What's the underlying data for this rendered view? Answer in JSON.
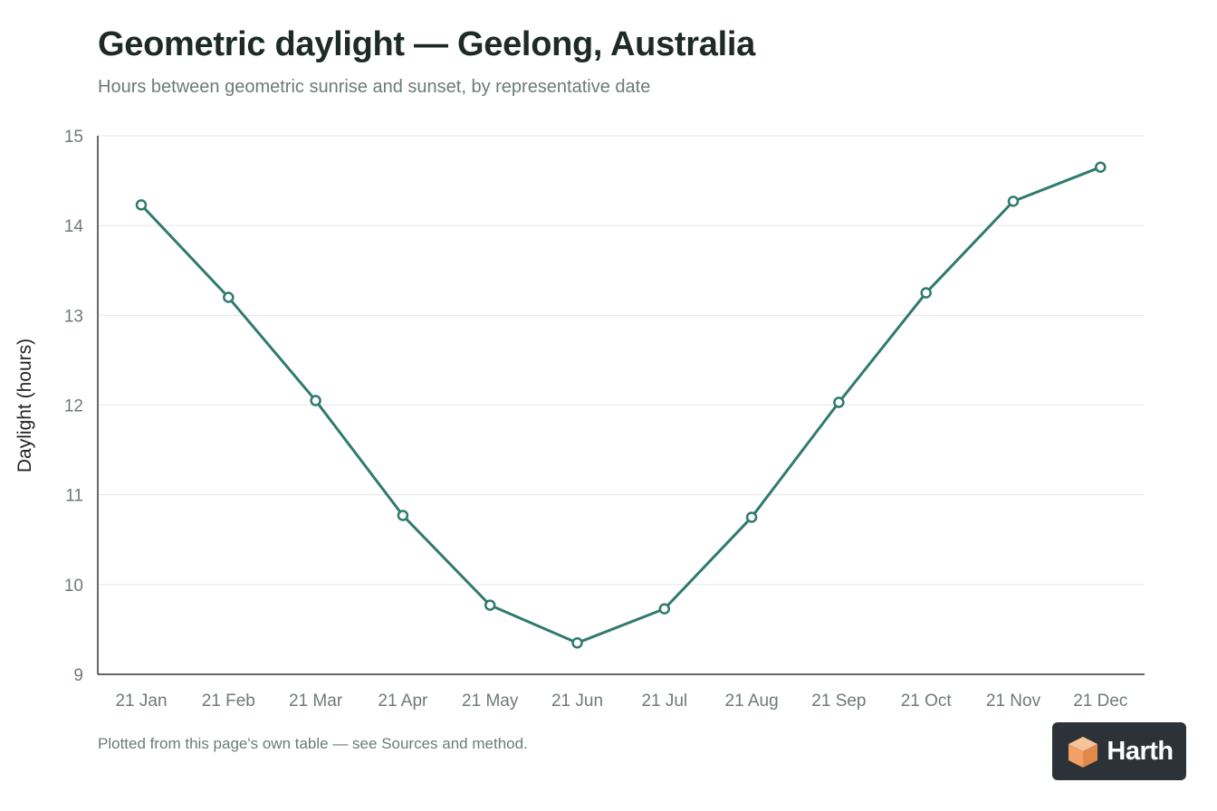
{
  "header": {
    "title": "Geometric daylight — Geelong, Australia",
    "subtitle": "Hours between geometric sunrise and sunset, by representative date"
  },
  "footer": {
    "note": "Plotted from this page's own table — see Sources and method.",
    "logo_text": "Harth"
  },
  "colors": {
    "line": "#2f7a6e",
    "axis": "#333333",
    "grid": "#e6e6e6",
    "tick_text": "#6d7b77",
    "logo_bg": "#2b3339",
    "logo_orange": "#f2a065"
  },
  "chart_data": {
    "type": "line",
    "categories": [
      "21 Jan",
      "21 Feb",
      "21 Mar",
      "21 Apr",
      "21 May",
      "21 Jun",
      "21 Jul",
      "21 Aug",
      "21 Sep",
      "21 Oct",
      "21 Nov",
      "21 Dec"
    ],
    "series": [
      {
        "values": [
          14.23,
          13.2,
          12.05,
          10.77,
          9.77,
          9.35,
          9.73,
          10.75,
          12.03,
          13.25,
          14.27,
          14.65
        ]
      }
    ],
    "title": "Geometric daylight — Geelong, Australia",
    "subtitle": "Hours between geometric sunrise and sunset, by representative date",
    "xlabel": "",
    "ylabel": "Daylight (hours)",
    "ylim": [
      9,
      15
    ],
    "yticks": [
      9,
      10,
      11,
      12,
      13,
      14,
      15
    ],
    "grid": true,
    "legend": "none"
  }
}
